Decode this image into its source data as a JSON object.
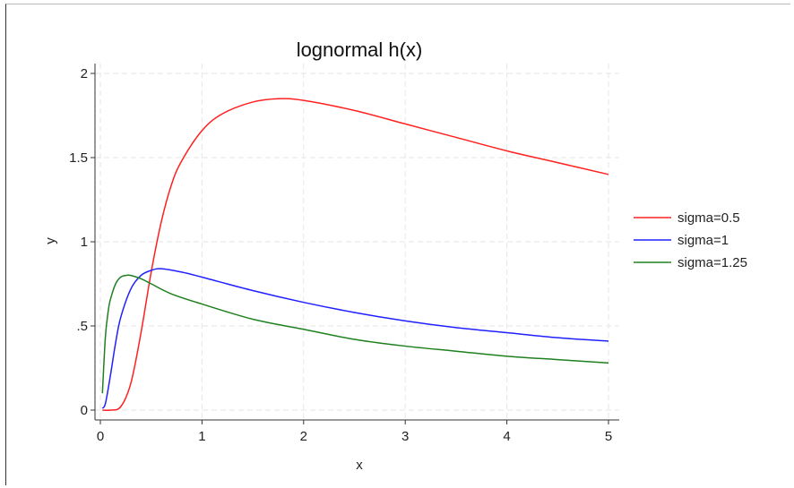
{
  "chart_data": {
    "type": "line",
    "title": "lognormal h(x)",
    "xlabel": "x",
    "ylabel": "y",
    "xlim": [
      0,
      5
    ],
    "ylim": [
      0,
      2
    ],
    "x_ticks": [
      0,
      1,
      2,
      3,
      4,
      5
    ],
    "x_tick_labels": [
      "0",
      "1",
      "2",
      "3",
      "4",
      "5"
    ],
    "y_ticks": [
      0,
      0.5,
      1,
      1.5,
      2
    ],
    "y_tick_labels": [
      "0",
      ".5",
      "1",
      "1.5",
      "2"
    ],
    "grid": true,
    "legend_position": "right",
    "series": [
      {
        "name": "sigma=0.5",
        "color": "#ff2020",
        "x": [
          0.02,
          0.1,
          0.2,
          0.3,
          0.4,
          0.5,
          0.6,
          0.7,
          0.8,
          1.0,
          1.2,
          1.5,
          1.75,
          2.0,
          2.5,
          3.0,
          3.5,
          4.0,
          4.5,
          5.0
        ],
        "y": [
          0.0,
          0.0,
          0.02,
          0.16,
          0.46,
          0.82,
          1.12,
          1.34,
          1.48,
          1.66,
          1.76,
          1.83,
          1.85,
          1.84,
          1.78,
          1.7,
          1.62,
          1.54,
          1.47,
          1.4
        ]
      },
      {
        "name": "sigma=1",
        "color": "#2020ff",
        "x": [
          0.02,
          0.05,
          0.1,
          0.15,
          0.2,
          0.3,
          0.4,
          0.5,
          0.6,
          0.8,
          1.0,
          1.5,
          2.0,
          2.5,
          3.0,
          3.5,
          4.0,
          4.5,
          5.0
        ],
        "y": [
          0.01,
          0.04,
          0.21,
          0.4,
          0.55,
          0.72,
          0.8,
          0.83,
          0.84,
          0.82,
          0.79,
          0.71,
          0.64,
          0.58,
          0.53,
          0.49,
          0.46,
          0.43,
          0.41
        ]
      },
      {
        "name": "sigma=1.25",
        "color": "#208020",
        "x": [
          0.02,
          0.05,
          0.08,
          0.1,
          0.15,
          0.2,
          0.25,
          0.3,
          0.4,
          0.5,
          0.7,
          1.0,
          1.5,
          2.0,
          2.5,
          3.0,
          3.5,
          4.0,
          4.5,
          5.0
        ],
        "y": [
          0.1,
          0.44,
          0.6,
          0.66,
          0.75,
          0.79,
          0.8,
          0.8,
          0.78,
          0.75,
          0.69,
          0.63,
          0.54,
          0.48,
          0.42,
          0.38,
          0.35,
          0.32,
          0.3,
          0.28
        ]
      }
    ]
  }
}
